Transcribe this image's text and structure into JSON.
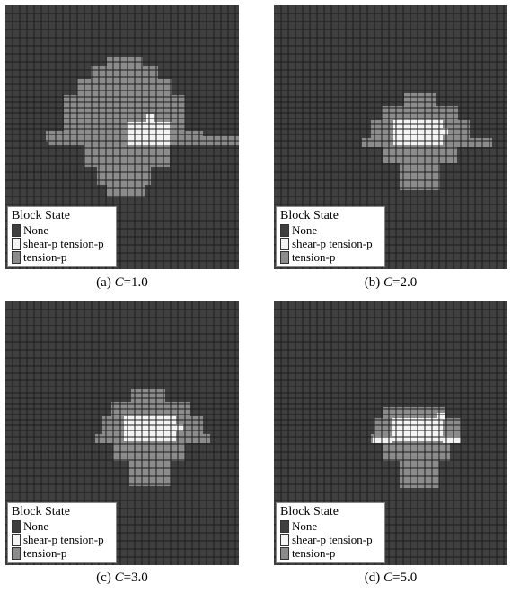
{
  "colors": {
    "none": "#3f3f3f",
    "shear_tension": "#f4f4f4",
    "tension": "#8c8c8c",
    "grid": "#1c1c1c"
  },
  "legend": {
    "title": "Block State",
    "items": [
      {
        "label": "None",
        "state": "none"
      },
      {
        "label": "shear-p tension-p",
        "state": "shear_tension"
      },
      {
        "label": "tension-p",
        "state": "tension"
      }
    ]
  },
  "panels": [
    {
      "caption_prefix": "(a) ",
      "caption_var": "C",
      "caption_value": "=1.0"
    },
    {
      "caption_prefix": "(b) ",
      "caption_var": "C",
      "caption_value": "=2.0"
    },
    {
      "caption_prefix": "(c) ",
      "caption_var": "C",
      "caption_value": "=3.0"
    },
    {
      "caption_prefix": "(d) ",
      "caption_var": "C",
      "caption_value": "=5.0"
    }
  ]
}
